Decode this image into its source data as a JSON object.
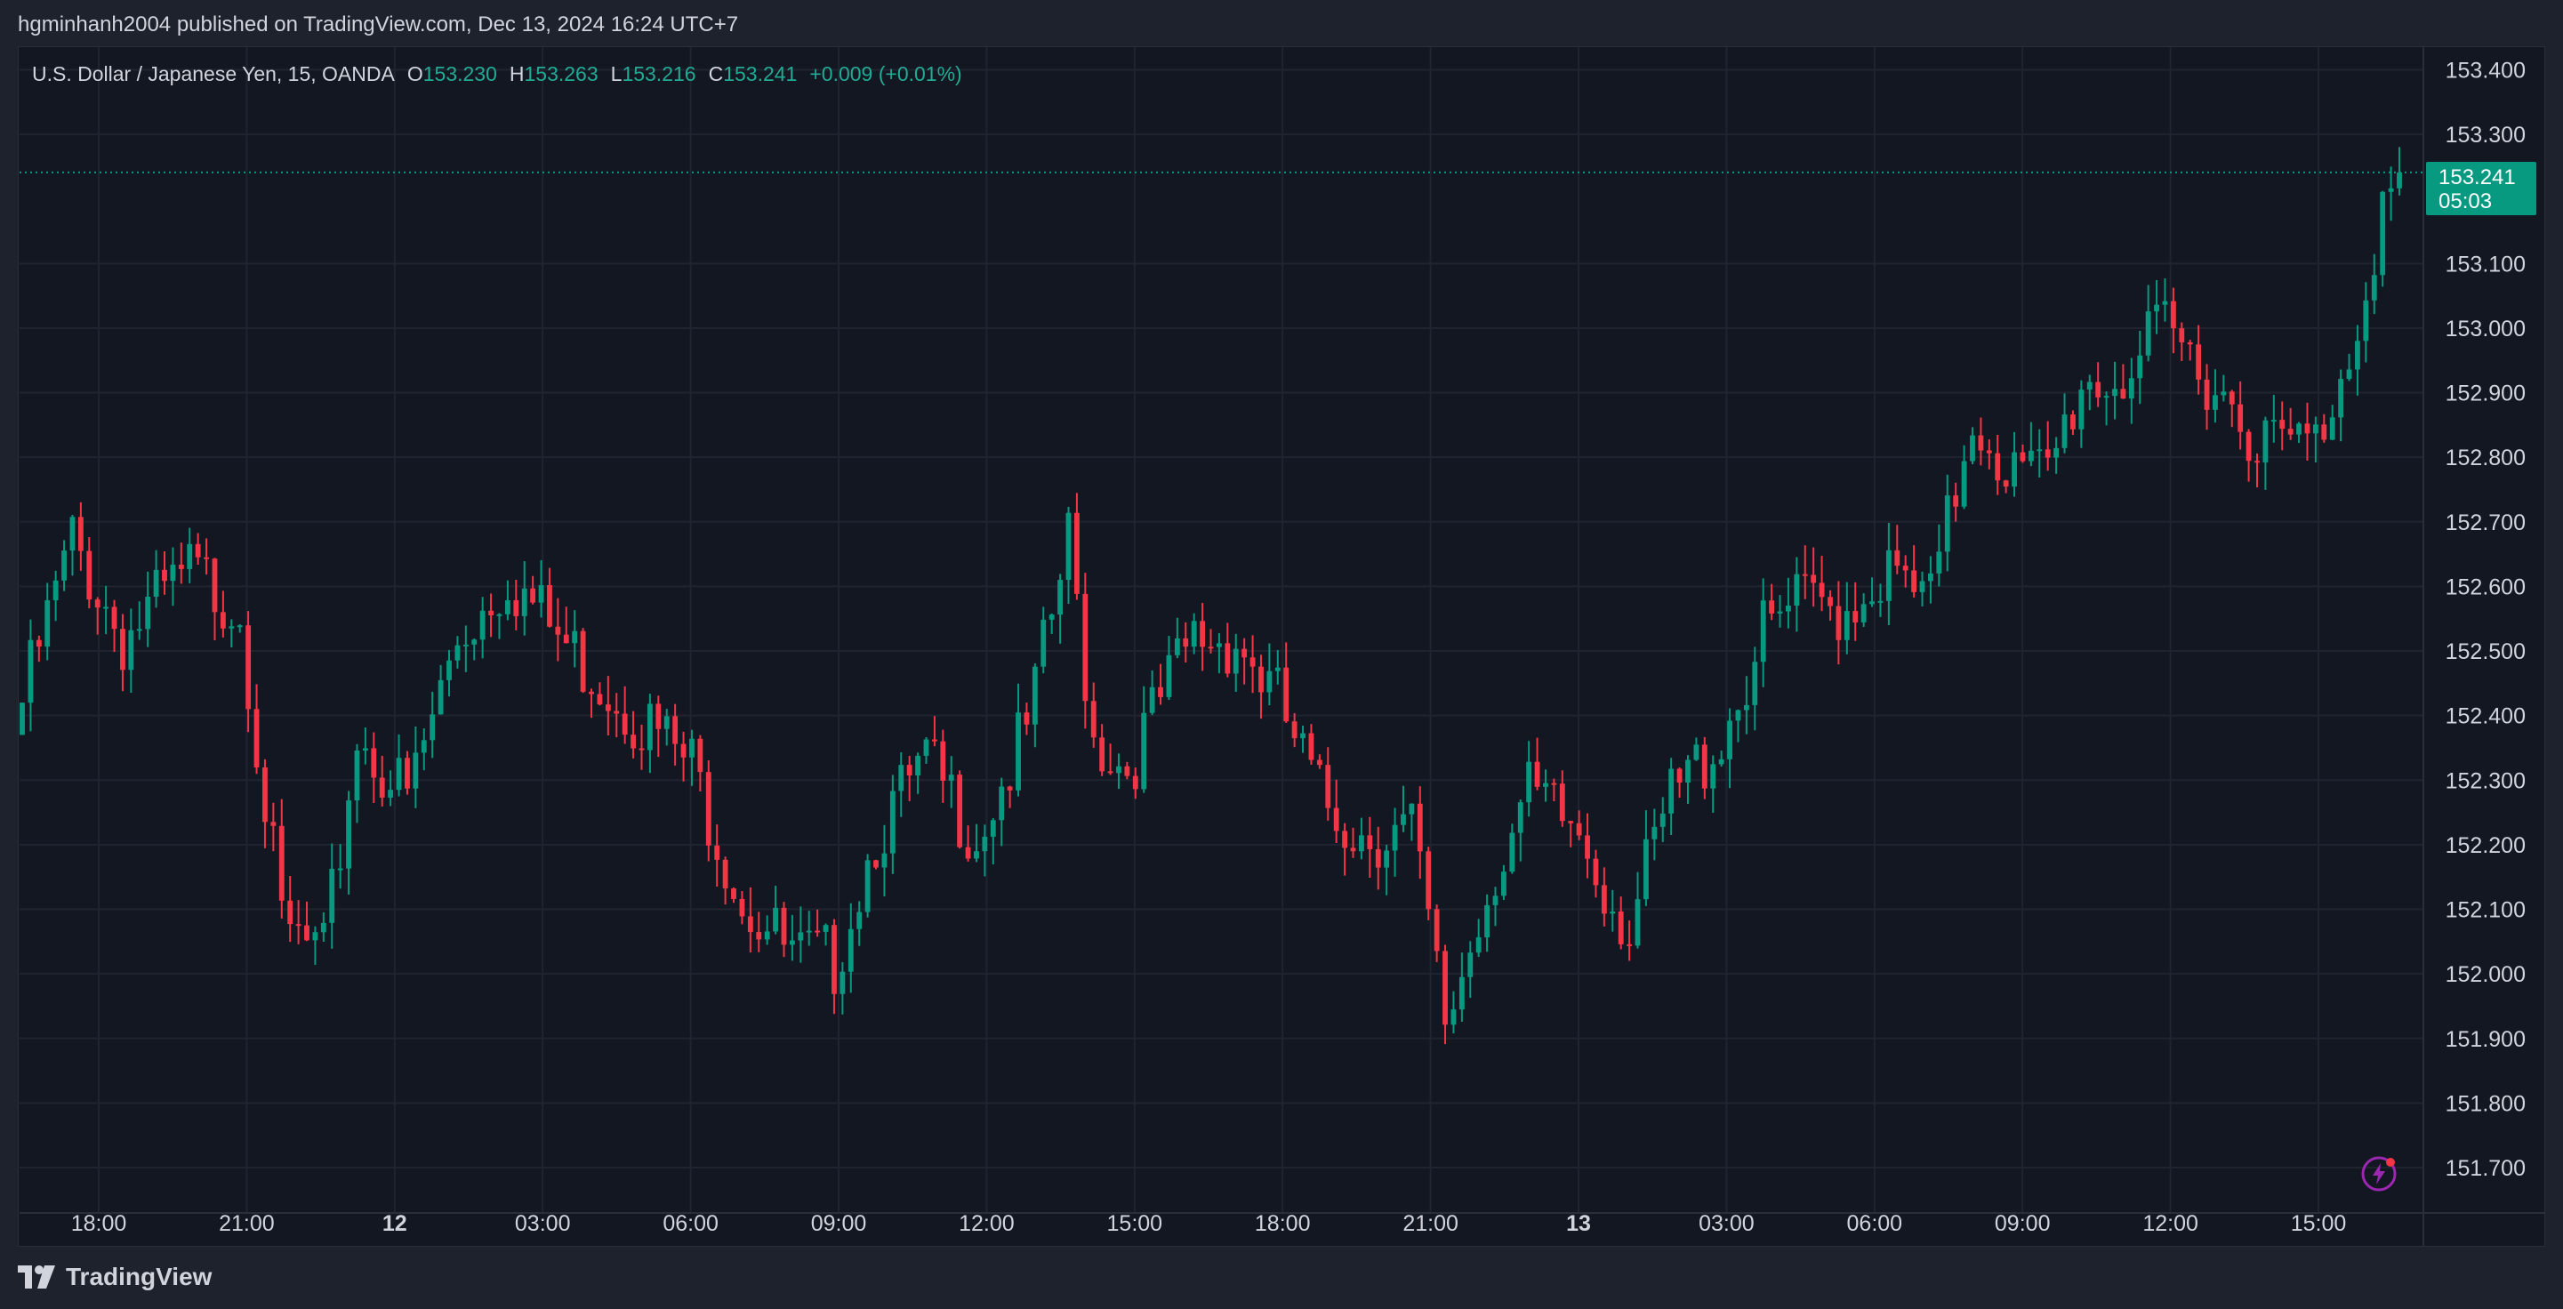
{
  "header": {
    "attribution": "hgminhanh2004 published on TradingView.com, Dec 13, 2024 16:24 UTC+7"
  },
  "legend": {
    "symbol": "U.S. Dollar / Japanese Yen, 15, OANDA",
    "open_label": "O",
    "open": "153.230",
    "high_label": "H",
    "high": "153.263",
    "low_label": "L",
    "low": "153.216",
    "close_label": "C",
    "close": "153.241",
    "change": "+0.009 (+0.01%)"
  },
  "price_badge": {
    "price": "153.241",
    "countdown": "05:03"
  },
  "footer": {
    "brand": "TradingView"
  },
  "colors": {
    "up": "#089981",
    "down": "#f23645",
    "bg": "#131722",
    "grid": "#1f2430"
  },
  "chart_data": {
    "type": "candlestick",
    "interval_minutes": 15,
    "last_price": 153.241,
    "y_ticks": [
      "153.400",
      "153.300",
      "153.100",
      "153.000",
      "152.900",
      "152.800",
      "152.700",
      "152.600",
      "152.500",
      "152.400",
      "152.300",
      "152.200",
      "152.100",
      "152.000",
      "151.900",
      "151.800",
      "151.700"
    ],
    "ylim": [
      151.65,
      153.45
    ],
    "x_ticks": [
      {
        "label": "18:00",
        "bold": false
      },
      {
        "label": "21:00",
        "bold": false
      },
      {
        "label": "12",
        "bold": true
      },
      {
        "label": "03:00",
        "bold": false
      },
      {
        "label": "06:00",
        "bold": false
      },
      {
        "label": "09:00",
        "bold": false
      },
      {
        "label": "12:00",
        "bold": false
      },
      {
        "label": "15:00",
        "bold": false
      },
      {
        "label": "18:00",
        "bold": false
      },
      {
        "label": "21:00",
        "bold": false
      },
      {
        "label": "13",
        "bold": true
      },
      {
        "label": "03:00",
        "bold": false
      },
      {
        "label": "06:00",
        "bold": false
      },
      {
        "label": "09:00",
        "bold": false
      },
      {
        "label": "12:00",
        "bold": false
      },
      {
        "label": "15:00",
        "bold": false
      }
    ],
    "key_points": [
      [
        0,
        152.45
      ],
      [
        6,
        152.7
      ],
      [
        12,
        152.55
      ],
      [
        20,
        152.65
      ],
      [
        26,
        152.6
      ],
      [
        31,
        152.1
      ],
      [
        36,
        152.05
      ],
      [
        40,
        152.4
      ],
      [
        46,
        152.3
      ],
      [
        52,
        152.55
      ],
      [
        58,
        152.65
      ],
      [
        64,
        152.55
      ],
      [
        72,
        152.45
      ],
      [
        80,
        152.35
      ],
      [
        86,
        152.15
      ],
      [
        92,
        152.05
      ],
      [
        97,
        152.05
      ],
      [
        102,
        152.25
      ],
      [
        108,
        152.35
      ],
      [
        114,
        152.25
      ],
      [
        120,
        152.4
      ],
      [
        125,
        152.7
      ],
      [
        128,
        152.4
      ],
      [
        132,
        152.35
      ],
      [
        136,
        152.45
      ],
      [
        140,
        152.55
      ],
      [
        145,
        152.55
      ],
      [
        150,
        152.45
      ],
      [
        155,
        152.3
      ],
      [
        160,
        152.25
      ],
      [
        166,
        152.25
      ],
      [
        170,
        151.95
      ],
      [
        176,
        152.2
      ],
      [
        180,
        152.3
      ],
      [
        186,
        152.25
      ],
      [
        192,
        152.1
      ],
      [
        197,
        152.3
      ],
      [
        203,
        152.4
      ],
      [
        208,
        152.55
      ],
      [
        212,
        152.6
      ],
      [
        218,
        152.6
      ],
      [
        222,
        152.65
      ],
      [
        228,
        152.6
      ],
      [
        233,
        152.9
      ],
      [
        238,
        152.8
      ],
      [
        242,
        152.8
      ],
      [
        246,
        152.95
      ],
      [
        250,
        152.95
      ],
      [
        256,
        153.02
      ],
      [
        262,
        152.95
      ],
      [
        268,
        152.85
      ],
      [
        274,
        152.85
      ],
      [
        278,
        153.0
      ],
      [
        282,
        153.22
      ],
      [
        284,
        153.24
      ]
    ]
  }
}
